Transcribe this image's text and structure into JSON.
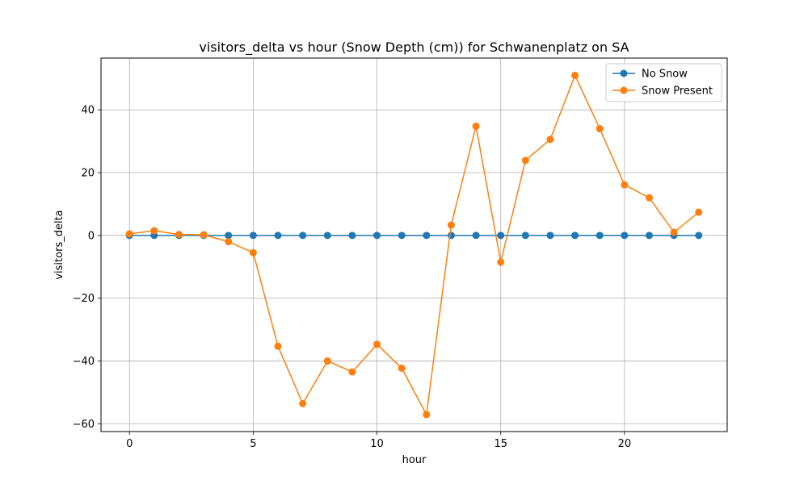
{
  "chart_data": {
    "type": "line",
    "title": "visitors_delta vs hour (Snow Depth (cm)) for Schwanenplatz on SA",
    "xlabel": "hour",
    "ylabel": "visitors_delta",
    "xlim": [
      -1.15,
      24.15
    ],
    "ylim": [
      -62.5,
      56.5
    ],
    "xticks": [
      0,
      5,
      10,
      15,
      20
    ],
    "yticks": [
      -60,
      -40,
      -20,
      0,
      20,
      40
    ],
    "grid": true,
    "legend_position": "top-right",
    "x": [
      0,
      1,
      2,
      3,
      4,
      5,
      6,
      7,
      8,
      9,
      10,
      11,
      12,
      13,
      14,
      15,
      16,
      17,
      18,
      19,
      20,
      21,
      22,
      23
    ],
    "series": [
      {
        "name": "No Snow",
        "color": "#1f77b4",
        "values": [
          0,
          0,
          0,
          0,
          0,
          0,
          0,
          0,
          0,
          0,
          0,
          0,
          0,
          0,
          0,
          0,
          0,
          0,
          0,
          0,
          0,
          0,
          0,
          0
        ]
      },
      {
        "name": "Snow Present",
        "color": "#ff7f0e",
        "values": [
          0.5,
          1.5,
          0.3,
          0.2,
          -2.0,
          -5.5,
          -35.3,
          -53.6,
          -40.0,
          -43.5,
          -34.7,
          -42.3,
          -57.1,
          3.3,
          34.8,
          -8.5,
          23.9,
          30.6,
          51.0,
          34.0,
          16.1,
          12.0,
          1.0,
          7.4
        ]
      }
    ]
  }
}
